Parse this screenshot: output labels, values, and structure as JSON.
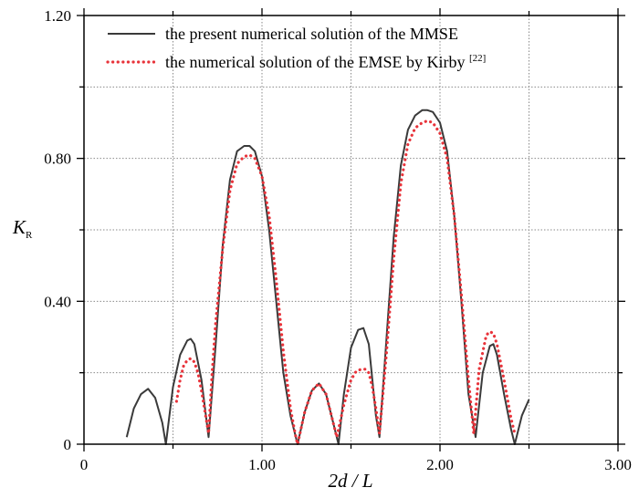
{
  "chart_data": {
    "type": "line",
    "xlabel": "2d / L",
    "ylabel": "K",
    "ylabel_sub": "R",
    "xlim": [
      0,
      3.0
    ],
    "ylim": [
      0,
      1.2
    ],
    "x_ticks": [
      0,
      1.0,
      2.0,
      3.0
    ],
    "x_tick_labels": [
      "0",
      "1.00",
      "2.00",
      "3.00"
    ],
    "y_ticks": [
      0,
      0.4,
      0.8,
      1.2
    ],
    "y_tick_labels": [
      "0",
      "0.40",
      "0.80",
      "1.20"
    ],
    "grid": true,
    "legend_position": "top",
    "series": [
      {
        "name": "the present numerical solution of the MMSE",
        "color": "#3a3a3a",
        "style": "solid",
        "x": [
          0.24,
          0.28,
          0.32,
          0.36,
          0.4,
          0.44,
          0.46,
          0.5,
          0.54,
          0.58,
          0.6,
          0.62,
          0.66,
          0.7,
          0.74,
          0.78,
          0.82,
          0.86,
          0.9,
          0.93,
          0.96,
          1.0,
          1.04,
          1.08,
          1.12,
          1.16,
          1.2,
          1.24,
          1.28,
          1.32,
          1.36,
          1.4,
          1.43,
          1.46,
          1.5,
          1.54,
          1.57,
          1.6,
          1.64,
          1.66,
          1.7,
          1.74,
          1.78,
          1.82,
          1.86,
          1.9,
          1.93,
          1.96,
          2.0,
          2.04,
          2.08,
          2.12,
          2.16,
          2.2,
          2.24,
          2.28,
          2.3,
          2.32,
          2.36,
          2.4,
          2.42,
          2.46,
          2.5
        ],
        "y": [
          0.02,
          0.1,
          0.14,
          0.155,
          0.13,
          0.06,
          0.0,
          0.16,
          0.25,
          0.29,
          0.295,
          0.28,
          0.18,
          0.02,
          0.28,
          0.56,
          0.74,
          0.82,
          0.835,
          0.835,
          0.82,
          0.75,
          0.6,
          0.4,
          0.2,
          0.08,
          0.0,
          0.09,
          0.15,
          0.17,
          0.14,
          0.06,
          0.0,
          0.14,
          0.27,
          0.32,
          0.325,
          0.28,
          0.08,
          0.02,
          0.3,
          0.58,
          0.78,
          0.88,
          0.92,
          0.935,
          0.935,
          0.93,
          0.9,
          0.82,
          0.64,
          0.4,
          0.14,
          0.02,
          0.2,
          0.275,
          0.28,
          0.25,
          0.14,
          0.04,
          0.0,
          0.08,
          0.125
        ]
      },
      {
        "name": "the numerical solution of the EMSE by Kirby",
        "name_superscript": "[22]",
        "color": "#e8333a",
        "style": "dotted",
        "x": [
          0.52,
          0.54,
          0.56,
          0.58,
          0.6,
          0.62,
          0.64,
          0.66,
          0.68,
          0.7,
          0.72,
          0.74,
          0.78,
          0.82,
          0.86,
          0.9,
          0.93,
          0.96,
          1.0,
          1.04,
          1.08,
          1.12,
          1.16,
          1.19,
          1.2,
          1.24,
          1.28,
          1.32,
          1.36,
          1.4,
          1.42,
          1.46,
          1.5,
          1.53,
          1.56,
          1.58,
          1.6,
          1.62,
          1.64,
          1.66,
          1.7,
          1.74,
          1.78,
          1.82,
          1.86,
          1.9,
          1.93,
          1.96,
          2.0,
          2.04,
          2.08,
          2.12,
          2.16,
          2.19,
          2.22,
          2.26,
          2.28,
          2.3,
          2.32,
          2.36,
          2.4,
          2.42
        ],
        "y": [
          0.12,
          0.18,
          0.22,
          0.235,
          0.24,
          0.23,
          0.2,
          0.15,
          0.09,
          0.03,
          0.2,
          0.34,
          0.55,
          0.71,
          0.785,
          0.805,
          0.81,
          0.8,
          0.75,
          0.64,
          0.46,
          0.26,
          0.1,
          0.02,
          0.0,
          0.09,
          0.15,
          0.17,
          0.14,
          0.06,
          0.02,
          0.11,
          0.18,
          0.205,
          0.21,
          0.21,
          0.2,
          0.16,
          0.1,
          0.03,
          0.26,
          0.52,
          0.73,
          0.84,
          0.885,
          0.9,
          0.905,
          0.9,
          0.87,
          0.8,
          0.64,
          0.42,
          0.18,
          0.03,
          0.21,
          0.305,
          0.315,
          0.31,
          0.28,
          0.18,
          0.07,
          0.03
        ]
      }
    ]
  }
}
